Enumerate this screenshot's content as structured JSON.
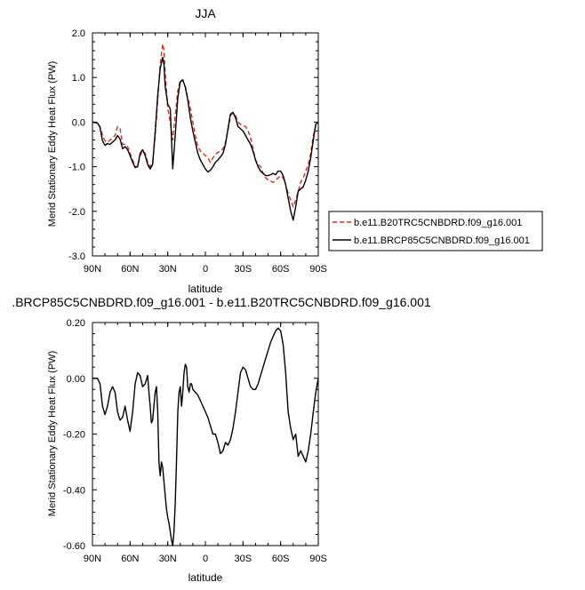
{
  "chart_data": [
    {
      "type": "line",
      "title": "JJA",
      "xlabel": "latitude",
      "ylabel": "Merid Stationary Eddy Heat Flux (PW)",
      "xlim": [
        90,
        -90
      ],
      "ylim": [
        -3.0,
        2.0
      ],
      "x_ticks": [
        {
          "value": 90,
          "label": "90N"
        },
        {
          "value": 60,
          "label": "60N"
        },
        {
          "value": 30,
          "label": "30N"
        },
        {
          "value": 0,
          "label": "0"
        },
        {
          "value": -30,
          "label": "30S"
        },
        {
          "value": -60,
          "label": "60S"
        },
        {
          "value": -90,
          "label": "90S"
        }
      ],
      "y_ticks": [
        {
          "value": 2.0,
          "label": "2.0"
        },
        {
          "value": 1.0,
          "label": "1.0"
        },
        {
          "value": 0.0,
          "label": "0.0"
        },
        {
          "value": -1.0,
          "label": "-1.0"
        },
        {
          "value": -2.0,
          "label": "-2.0"
        },
        {
          "value": -3.0,
          "label": "-3.0"
        }
      ],
      "legend_position": "right",
      "series": [
        {
          "name": "b.e11.B20TRC5CNBDRD.f09_g16.001",
          "color": "#e8271c",
          "dash": "dashed",
          "x": [
            90,
            86,
            84,
            82,
            80,
            78,
            76,
            74,
            72,
            70,
            68,
            66,
            64,
            62,
            60,
            58,
            56,
            54,
            52,
            50,
            48,
            46,
            44,
            42,
            40,
            38,
            36,
            34,
            33,
            32,
            30,
            28,
            26,
            24,
            22,
            20,
            18,
            16,
            14,
            12,
            10,
            8,
            6,
            4,
            2,
            0,
            -2,
            -4,
            -6,
            -8,
            -10,
            -12,
            -14,
            -16,
            -18,
            -20,
            -22,
            -24,
            -26,
            -28,
            -30,
            -32,
            -34,
            -36,
            -38,
            -40,
            -42,
            -44,
            -46,
            -48,
            -50,
            -52,
            -54,
            -56,
            -58,
            -60,
            -62,
            -64,
            -66,
            -68,
            -70,
            -72,
            -74,
            -76,
            -78,
            -80,
            -82,
            -84,
            -86,
            -88,
            -90
          ],
          "y": [
            0.0,
            -0.02,
            -0.1,
            -0.3,
            -0.42,
            -0.45,
            -0.4,
            -0.35,
            -0.3,
            -0.1,
            -0.15,
            -0.5,
            -0.5,
            -0.55,
            -0.7,
            -0.85,
            -1.0,
            -1.0,
            -0.75,
            -0.65,
            -0.7,
            -0.9,
            -1.0,
            -0.9,
            -0.3,
            0.5,
            1.3,
            1.75,
            1.6,
            1.1,
            0.3,
            0.0,
            -0.4,
            0.15,
            0.7,
            0.95,
            0.92,
            0.8,
            0.55,
            0.3,
            0.0,
            -0.3,
            -0.55,
            -0.65,
            -0.7,
            -0.75,
            -0.8,
            -0.9,
            -0.8,
            -0.72,
            -0.68,
            -0.65,
            -0.6,
            -0.45,
            -0.2,
            0.15,
            0.2,
            0.15,
            0.0,
            -0.05,
            -0.08,
            -0.1,
            -0.2,
            -0.35,
            -0.6,
            -0.85,
            -0.95,
            -1.0,
            -1.15,
            -1.25,
            -1.3,
            -1.32,
            -1.35,
            -1.3,
            -1.25,
            -1.2,
            -1.25,
            -1.4,
            -1.6,
            -1.75,
            -1.9,
            -1.75,
            -1.55,
            -1.35,
            -1.25,
            -1.1,
            -0.95,
            -0.7,
            -0.3,
            -0.05,
            0.0
          ]
        },
        {
          "name": "b.e11.BRCP85C5CNBDRD.f09_g16.001",
          "color": "#000000",
          "dash": "solid",
          "x": [
            90,
            86,
            84,
            82,
            80,
            78,
            76,
            74,
            72,
            70,
            68,
            66,
            64,
            62,
            60,
            58,
            56,
            54,
            52,
            50,
            48,
            46,
            44,
            42,
            40,
            38,
            36,
            34,
            33,
            32,
            30,
            28,
            26,
            24,
            22,
            20,
            18,
            16,
            14,
            12,
            10,
            8,
            6,
            4,
            2,
            0,
            -2,
            -4,
            -6,
            -8,
            -10,
            -12,
            -14,
            -16,
            -18,
            -20,
            -22,
            -24,
            -26,
            -28,
            -30,
            -32,
            -34,
            -36,
            -38,
            -40,
            -42,
            -44,
            -46,
            -48,
            -50,
            -52,
            -54,
            -56,
            -58,
            -60,
            -62,
            -64,
            -66,
            -68,
            -70,
            -72,
            -74,
            -76,
            -78,
            -80,
            -82,
            -84,
            -86,
            -88,
            -90
          ],
          "y": [
            0.0,
            -0.02,
            -0.12,
            -0.42,
            -0.52,
            -0.48,
            -0.5,
            -0.45,
            -0.4,
            -0.3,
            -0.38,
            -0.6,
            -0.55,
            -0.62,
            -0.75,
            -0.9,
            -1.02,
            -1.0,
            -0.7,
            -0.62,
            -0.75,
            -0.95,
            -1.05,
            -0.95,
            -0.2,
            0.6,
            1.2,
            1.45,
            1.3,
            0.8,
            0.4,
            0.3,
            -1.05,
            -0.3,
            0.55,
            0.9,
            0.95,
            0.78,
            0.5,
            0.1,
            -0.2,
            -0.45,
            -0.7,
            -0.85,
            -0.95,
            -1.05,
            -1.12,
            -1.08,
            -1.0,
            -0.9,
            -0.85,
            -0.78,
            -0.7,
            -0.5,
            -0.15,
            0.18,
            0.22,
            0.1,
            -0.1,
            -0.15,
            -0.2,
            -0.3,
            -0.4,
            -0.5,
            -0.65,
            -0.85,
            -1.0,
            -1.1,
            -1.15,
            -1.2,
            -1.2,
            -1.18,
            -1.15,
            -1.18,
            -1.1,
            -1.1,
            -1.2,
            -1.4,
            -1.7,
            -2.0,
            -2.2,
            -1.9,
            -1.55,
            -1.5,
            -1.45,
            -1.3,
            -1.1,
            -0.8,
            -0.4,
            -0.05,
            0.0
          ]
        }
      ]
    },
    {
      "type": "line",
      "title": ".BRCP85C5CNBDRD.f09_g16.001 - b.e11.B20TRC5CNBDRD.f09_g16.001",
      "xlabel": "latitude",
      "ylabel": "Merid Stationary Eddy Heat Flux (PW)",
      "xlim": [
        90,
        -90
      ],
      "ylim": [
        -0.6,
        0.2
      ],
      "x_ticks": [
        {
          "value": 90,
          "label": "90N"
        },
        {
          "value": 60,
          "label": "60N"
        },
        {
          "value": 30,
          "label": "30N"
        },
        {
          "value": 0,
          "label": "0"
        },
        {
          "value": -30,
          "label": "30S"
        },
        {
          "value": -60,
          "label": "60S"
        },
        {
          "value": -90,
          "label": "90S"
        }
      ],
      "y_ticks": [
        {
          "value": 0.2,
          "label": "0.20"
        },
        {
          "value": 0.0,
          "label": "0.00"
        },
        {
          "value": -0.2,
          "label": "-0.20"
        },
        {
          "value": -0.4,
          "label": "-0.40"
        },
        {
          "value": -0.6,
          "label": "-0.60"
        }
      ],
      "series": [
        {
          "color": "#000000",
          "dash": "solid",
          "x": [
            90,
            88,
            86,
            84,
            82,
            80,
            78,
            76,
            74,
            72,
            70,
            68,
            66,
            64,
            62,
            60,
            58,
            56,
            54,
            52,
            50,
            48,
            46,
            45,
            44,
            43,
            42,
            41,
            40,
            39,
            38,
            37,
            36,
            35,
            34,
            33,
            32,
            31,
            30,
            29,
            28,
            27,
            26,
            25,
            24,
            23,
            22,
            21,
            20,
            19,
            18,
            17,
            16,
            15,
            14,
            13,
            12,
            11,
            10,
            8,
            6,
            4,
            2,
            0,
            -2,
            -4,
            -6,
            -8,
            -10,
            -12,
            -14,
            -16,
            -18,
            -20,
            -22,
            -24,
            -26,
            -28,
            -30,
            -32,
            -34,
            -36,
            -38,
            -40,
            -42,
            -44,
            -46,
            -48,
            -50,
            -52,
            -54,
            -56,
            -58,
            -60,
            -62,
            -64,
            -66,
            -68,
            -70,
            -72,
            -74,
            -76,
            -78,
            -80,
            -82,
            -84,
            -86,
            -88,
            -90
          ],
          "y": [
            0.0,
            0.0,
            0.0,
            -0.02,
            -0.1,
            -0.13,
            -0.1,
            -0.05,
            -0.03,
            -0.05,
            -0.12,
            -0.15,
            -0.14,
            -0.1,
            -0.15,
            -0.19,
            -0.12,
            -0.02,
            0.02,
            0.01,
            -0.03,
            -0.02,
            0.01,
            -0.05,
            -0.1,
            -0.16,
            -0.15,
            -0.1,
            -0.05,
            -0.03,
            -0.12,
            -0.3,
            -0.35,
            -0.3,
            -0.32,
            -0.37,
            -0.42,
            -0.47,
            -0.5,
            -0.52,
            -0.55,
            -0.58,
            -0.6,
            -0.55,
            -0.45,
            -0.3,
            -0.12,
            -0.05,
            -0.03,
            -0.1,
            -0.05,
            0.02,
            0.05,
            0.04,
            -0.03,
            -0.05,
            -0.02,
            -0.02,
            -0.04,
            -0.05,
            -0.06,
            -0.08,
            -0.1,
            -0.12,
            -0.14,
            -0.17,
            -0.2,
            -0.2,
            -0.23,
            -0.27,
            -0.26,
            -0.23,
            -0.24,
            -0.22,
            -0.18,
            -0.12,
            -0.05,
            0.02,
            0.04,
            0.03,
            0.0,
            -0.03,
            -0.04,
            -0.04,
            -0.02,
            0.01,
            0.04,
            0.07,
            0.1,
            0.13,
            0.15,
            0.17,
            0.18,
            0.17,
            0.12,
            0.02,
            -0.12,
            -0.18,
            -0.22,
            -0.2,
            -0.28,
            -0.26,
            -0.28,
            -0.3,
            -0.26,
            -0.2,
            -0.12,
            -0.05,
            0.0
          ]
        }
      ]
    }
  ]
}
